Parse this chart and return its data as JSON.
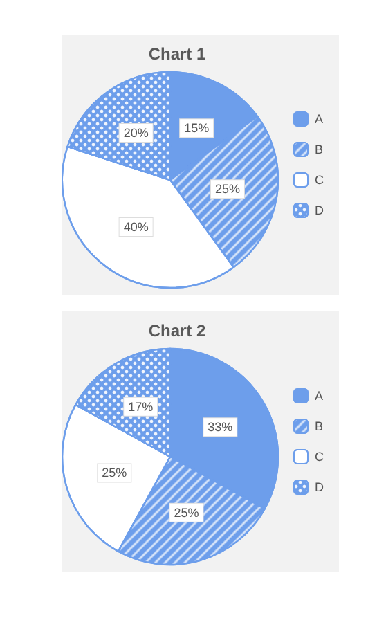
{
  "chart_data": [
    {
      "type": "pie",
      "title": "Chart 1",
      "categories": [
        "A",
        "B",
        "C",
        "D"
      ],
      "values": [
        15,
        25,
        40,
        20
      ],
      "value_labels": [
        "15%",
        "25%",
        "40%",
        "20%"
      ],
      "colors": [
        "#6d9eeb",
        "#6d9eeb",
        "#ffffff",
        "#6d9eeb"
      ],
      "legend": "right"
    },
    {
      "type": "pie",
      "title": "Chart 2",
      "categories": [
        "A",
        "B",
        "C",
        "D"
      ],
      "values": [
        33,
        25,
        25,
        17
      ],
      "value_labels": [
        "33%",
        "25%",
        "25%",
        "17%"
      ],
      "colors": [
        "#6d9eeb",
        "#6d9eeb",
        "#ffffff",
        "#6d9eeb"
      ],
      "legend": "right"
    }
  ]
}
